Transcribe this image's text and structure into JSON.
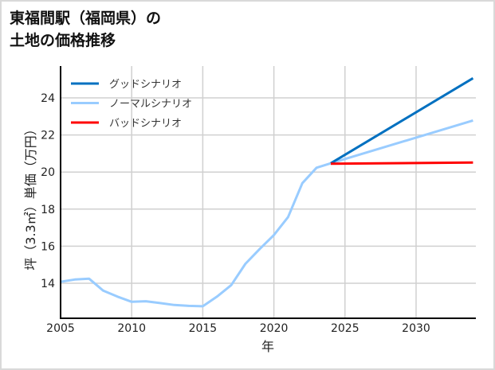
{
  "title_line1": "東福間駅（福岡県）の",
  "title_line2": "土地の価格推移",
  "chart_data": {
    "type": "line",
    "title": "東福間駅（福岡県）の土地の価格推移",
    "xlabel": "年",
    "ylabel": "坪（3.3㎡）単価（万円）",
    "xlim": [
      2005,
      2034
    ],
    "ylim": [
      12.2,
      25.8
    ],
    "xticks": [
      2005,
      2010,
      2015,
      2020,
      2025,
      2030
    ],
    "yticks": [
      14,
      16,
      18,
      20,
      22,
      24
    ],
    "grid": true,
    "legend_position": "upper left",
    "series": [
      {
        "name": "グッドシナリオ",
        "color": "#0070c0",
        "x": [
          2024,
          2034
        ],
        "values": [
          20.47,
          25.06
        ]
      },
      {
        "name": "ノーマルシナリオ",
        "color": "#99ccff",
        "x": [
          2005,
          2006,
          2007,
          2008,
          2009,
          2010,
          2011,
          2012,
          2013,
          2014,
          2015,
          2016,
          2017,
          2018,
          2019,
          2020,
          2021,
          2022,
          2023,
          2024,
          2034
        ],
        "values": [
          14.08,
          14.2,
          14.25,
          13.6,
          13.28,
          13.0,
          13.03,
          12.93,
          12.83,
          12.78,
          12.76,
          13.28,
          13.9,
          15.05,
          15.85,
          16.6,
          17.57,
          19.4,
          20.23,
          20.47,
          22.78
        ]
      },
      {
        "name": "バッドシナリオ",
        "color": "#ff0000",
        "x": [
          2024,
          2034
        ],
        "values": [
          20.45,
          20.51
        ]
      }
    ]
  }
}
